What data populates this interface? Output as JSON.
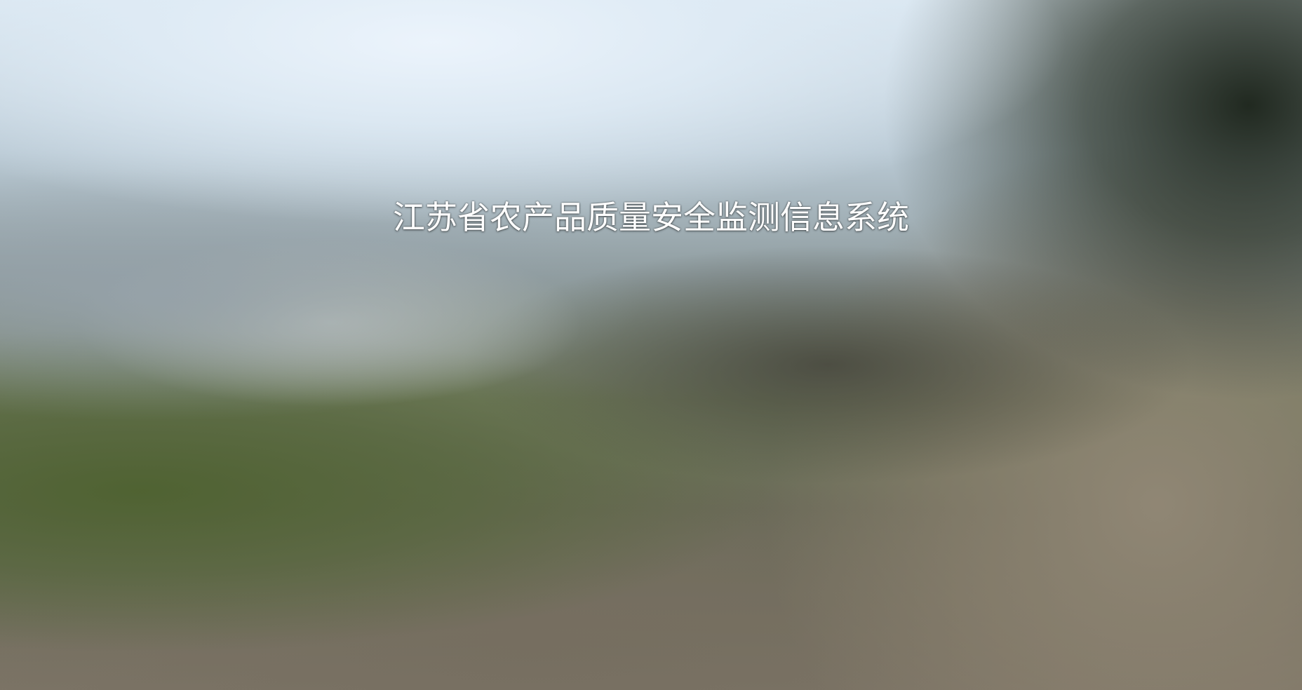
{
  "page": {
    "title": "江苏省农产品质量安全监测信息系统"
  },
  "colors": {
    "title_text": "#ffffff",
    "sky": "#e6eef6",
    "foliage": "#56663a",
    "ground": "#8a8272"
  }
}
